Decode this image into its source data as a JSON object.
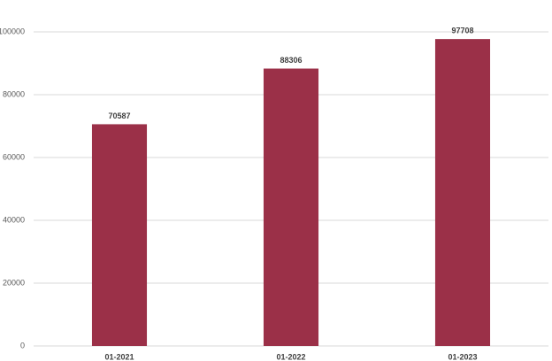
{
  "chart_data": {
    "type": "bar",
    "categories": [
      "01-2021",
      "01-2022",
      "01-2023"
    ],
    "values": [
      70587,
      88306,
      97708
    ],
    "color": "#9b3048",
    "ylim": [
      0,
      100000
    ],
    "yticks": [
      0,
      20000,
      40000,
      60000,
      80000,
      100000
    ],
    "grid": true,
    "data_labels": true
  }
}
